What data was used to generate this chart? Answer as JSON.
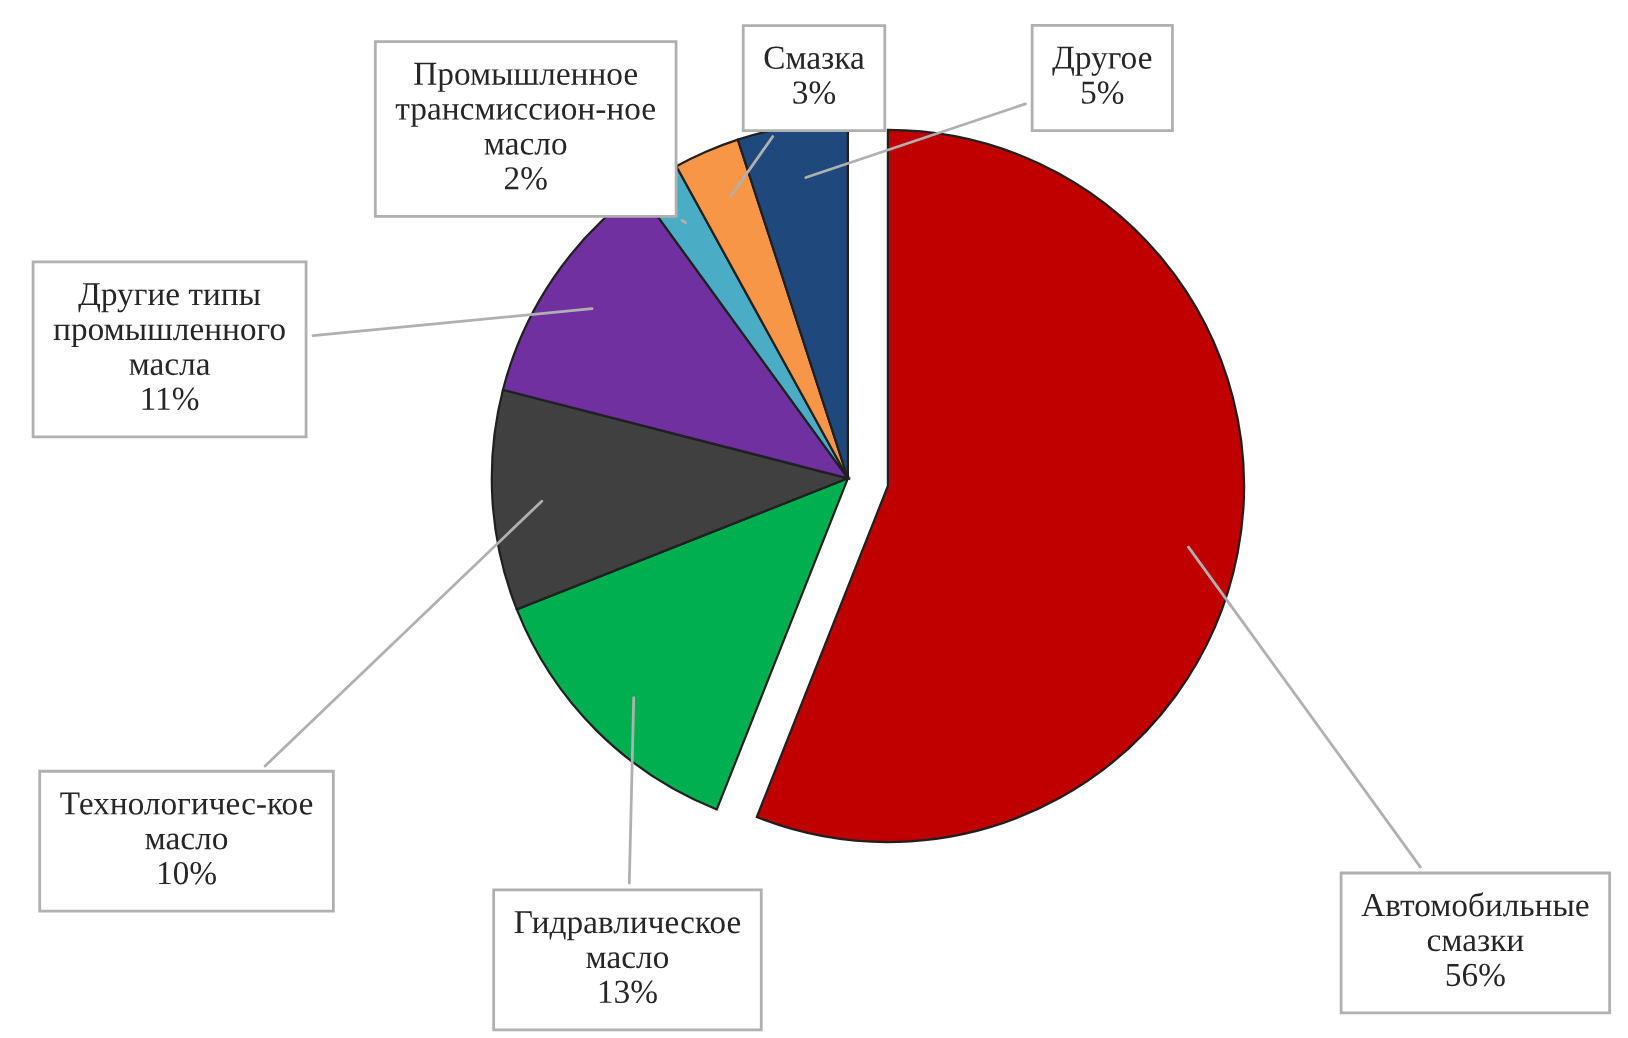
{
  "chart_data": {
    "type": "pie",
    "categories": [
      "Автомобильные\nсмазки",
      "Гидравлическое\nмасло",
      "Технологичес-кое\nмасло",
      "Другие типы\nпромышленного\nмасла",
      "Промышленное\nтрансмиссион-ное\nмасло",
      "Смазка",
      "Другое"
    ],
    "values": [
      56,
      13,
      10,
      11,
      2,
      3,
      5
    ],
    "value_labels": [
      "56%",
      "13%",
      "10%",
      "11%",
      "2%",
      "3%",
      "5%"
    ],
    "colors": [
      "#c00000",
      "#00b050",
      "#404040",
      "#7030a0",
      "#4bacc6",
      "#f79646",
      "#1f497d"
    ],
    "legend": false
  }
}
